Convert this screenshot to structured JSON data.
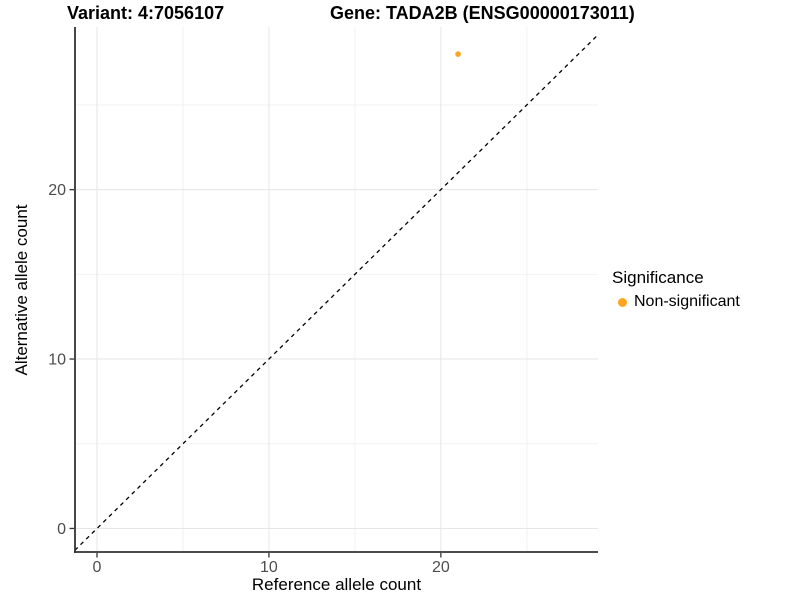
{
  "titles": {
    "variant": "Variant: 4:7056107",
    "gene": "Gene: TADA2B (ENSG00000173011)"
  },
  "chart_data": {
    "type": "scatter",
    "xlabel": "Reference allele count",
    "ylabel": "Alternative allele count",
    "x_ticks": [
      0,
      10,
      20
    ],
    "y_ticks": [
      0,
      10,
      20
    ],
    "x_minor_ticks": [
      5,
      15,
      25
    ],
    "y_minor_ticks": [
      5,
      15,
      25
    ],
    "xlim": [
      -1.28,
      29.14
    ],
    "ylim": [
      -1.39,
      29.6
    ],
    "grid": true,
    "points": [
      {
        "x": 21,
        "y": 28,
        "series": "Non-significant"
      }
    ],
    "identity_line": {
      "slope": 1,
      "intercept": 0,
      "style": "dashed"
    },
    "legend": {
      "position": "right",
      "title": "Significance",
      "items": [
        {
          "label": "Non-significant",
          "color": "#FFA41E"
        }
      ]
    },
    "colors": {
      "point": "#FFA41E",
      "identity_line": "#000000",
      "axis_line": "#333333",
      "tick_mark": "#333333",
      "tick_label": "#4D4D4D",
      "grid_major": "#E6E6E6",
      "grid_minor": "#F2F2F2",
      "background": "#FFFFFF"
    }
  }
}
